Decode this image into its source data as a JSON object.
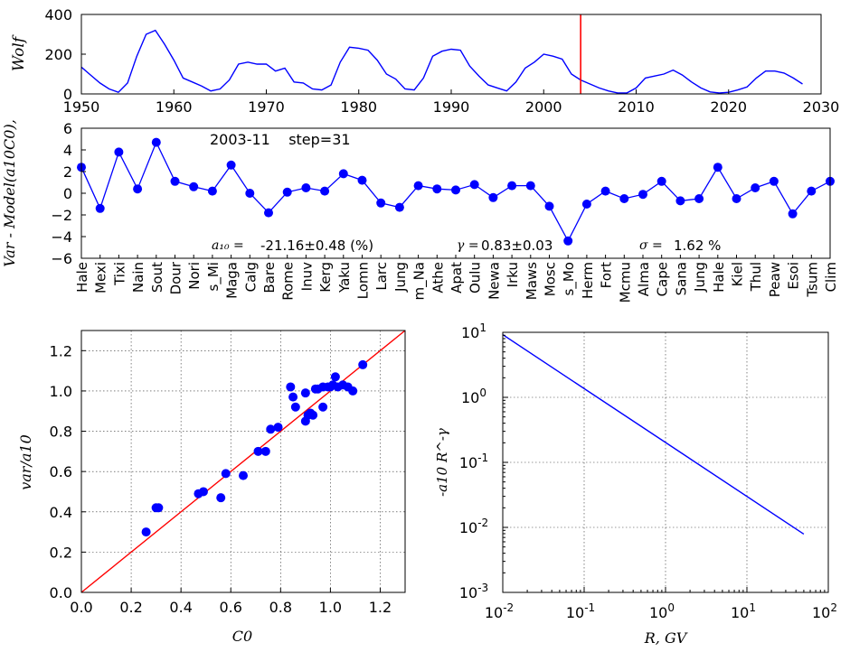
{
  "chart_data": [
    {
      "type": "line",
      "ylabel": "Wolf",
      "xlim": [
        1950,
        2030
      ],
      "ylim": [
        0,
        400
      ],
      "xticks": [
        "1950",
        "1960",
        "1970",
        "1980",
        "1990",
        "2000",
        "2010",
        "2020",
        "2030"
      ],
      "yticks": [
        "0",
        "200",
        "400"
      ],
      "marker_year": 2004,
      "colors": {
        "line": "#0000ff",
        "marker": "#ff0000"
      },
      "series": [
        {
          "x": [
            1950,
            1951,
            1952,
            1953,
            1954,
            1955,
            1956,
            1957,
            1958,
            1959,
            1960,
            1961,
            1962,
            1963,
            1964,
            1965,
            1966,
            1967,
            1968,
            1969,
            1970,
            1971,
            1972,
            1973,
            1974,
            1975,
            1976,
            1977,
            1978,
            1979,
            1980,
            1981,
            1982,
            1983,
            1984,
            1985,
            1986,
            1987,
            1988,
            1989,
            1990,
            1991,
            1992,
            1993,
            1994,
            1995,
            1996,
            1997,
            1998,
            1999,
            2000,
            2001,
            2002,
            2003,
            2004,
            2005,
            2006,
            2007,
            2008,
            2009,
            2010,
            2011,
            2012,
            2013,
            2014,
            2015,
            2016,
            2017,
            2018,
            2019,
            2020,
            2021,
            2022,
            2023,
            2024,
            2025,
            2026,
            2027,
            2028
          ],
          "y": [
            135,
            95,
            55,
            25,
            8,
            55,
            190,
            300,
            320,
            250,
            170,
            80,
            60,
            40,
            15,
            25,
            70,
            150,
            160,
            150,
            150,
            115,
            130,
            60,
            55,
            25,
            20,
            45,
            160,
            235,
            230,
            220,
            170,
            100,
            75,
            25,
            20,
            80,
            190,
            215,
            225,
            220,
            140,
            90,
            45,
            30,
            15,
            60,
            130,
            160,
            200,
            190,
            175,
            100,
            70,
            50,
            30,
            15,
            5,
            5,
            30,
            80,
            90,
            100,
            120,
            95,
            60,
            30,
            10,
            5,
            8,
            20,
            35,
            80,
            115,
            115,
            105,
            80,
            50
          ]
        }
      ]
    },
    {
      "type": "line",
      "ylabel": "Var - Model(a10C0),",
      "ylim": [
        -6,
        6
      ],
      "yticks": [
        "6",
        "4",
        "2",
        "0",
        "−2",
        "−4",
        "−6"
      ],
      "annotation_top": "2003-11    step=31",
      "stats": {
        "a10_label": "a₁₀ =",
        "a10_value": "-21.16±0.48 (%)",
        "gamma_label": "γ =",
        "gamma_value": "0.83±0.03",
        "sigma_label": "σ =",
        "sigma_value": "1.62 %"
      },
      "colors": {
        "line": "#0000ff",
        "marker": "#0000ff"
      },
      "categories": [
        "Hale",
        "Mexi",
        "Tixi",
        "Nain",
        "Sout",
        "Dour",
        "Nori",
        "s_Mi",
        "Maga",
        "Calg",
        "Bare",
        "Rome",
        "Inuv",
        "Kerg",
        "Yaku",
        "Lomn",
        "Larc",
        "Jung",
        "m_Na",
        "Athe",
        "Apat",
        "Oulu",
        "Newa",
        "Irku",
        "Maws",
        "Mosc",
        "s_Mo",
        "Herm",
        "Fort",
        "Mcmu",
        "Alma",
        "Cape",
        "Sana",
        "Jung",
        "Hale",
        "Kiel",
        "Thul",
        "Peaw",
        "Esoi",
        "Tsum",
        "Clim"
      ],
      "values": [
        2.4,
        -1.4,
        3.8,
        0.4,
        4.7,
        1.1,
        0.6,
        0.2,
        2.6,
        0.0,
        -1.8,
        0.1,
        0.5,
        0.2,
        1.8,
        1.2,
        -0.9,
        -1.3,
        0.7,
        0.4,
        0.3,
        0.8,
        -0.4,
        0.7,
        0.7,
        -1.2,
        -4.4,
        -1.0,
        0.2,
        -0.5,
        -0.1,
        1.1,
        -0.7,
        -0.5,
        2.4,
        -0.5,
        0.5,
        1.1,
        -1.9,
        0.2,
        1.1
      ]
    },
    {
      "type": "scatter",
      "xlabel": "C0",
      "ylabel": "var/a10",
      "xlim": [
        0.0,
        1.3
      ],
      "ylim": [
        0.0,
        1.3
      ],
      "xticks": [
        "0.0",
        "0.2",
        "0.4",
        "0.6",
        "0.8",
        "1.0",
        "1.2"
      ],
      "yticks": [
        "0.0",
        "0.2",
        "0.4",
        "0.6",
        "0.8",
        "1.0",
        "1.2"
      ],
      "grid": true,
      "colors": {
        "points": "#0000ff",
        "fit": "#ff0000"
      },
      "fit_line": {
        "x": [
          0,
          1.3
        ],
        "y": [
          0,
          1.3
        ]
      },
      "points": [
        [
          0.26,
          0.3
        ],
        [
          0.3,
          0.42
        ],
        [
          0.31,
          0.42
        ],
        [
          0.47,
          0.49
        ],
        [
          0.49,
          0.5
        ],
        [
          0.56,
          0.47
        ],
        [
          0.58,
          0.59
        ],
        [
          0.65,
          0.58
        ],
        [
          0.71,
          0.7
        ],
        [
          0.74,
          0.7
        ],
        [
          0.76,
          0.81
        ],
        [
          0.79,
          0.82
        ],
        [
          0.84,
          1.02
        ],
        [
          0.85,
          0.97
        ],
        [
          0.86,
          0.92
        ],
        [
          0.9,
          0.85
        ],
        [
          0.9,
          0.99
        ],
        [
          0.91,
          0.88
        ],
        [
          0.92,
          0.89
        ],
        [
          0.93,
          0.88
        ],
        [
          0.94,
          1.01
        ],
        [
          0.95,
          1.01
        ],
        [
          0.97,
          1.02
        ],
        [
          0.97,
          0.92
        ],
        [
          0.99,
          1.02
        ],
        [
          1.0,
          1.02
        ],
        [
          1.01,
          1.03
        ],
        [
          1.02,
          1.07
        ],
        [
          1.03,
          1.02
        ],
        [
          1.05,
          1.03
        ],
        [
          1.07,
          1.02
        ],
        [
          1.09,
          1.0
        ],
        [
          1.13,
          1.13
        ]
      ]
    },
    {
      "type": "line",
      "xlabel": "R, GV",
      "ylabel": "-a10 R^-γ",
      "xscale": "log",
      "yscale": "log",
      "xlim": [
        0.01,
        100
      ],
      "ylim": [
        0.001,
        10
      ],
      "grid": true,
      "colors": {
        "line": "#0000ff"
      },
      "xticks": [
        {
          "base": "10",
          "exp": "-2"
        },
        {
          "base": "10",
          "exp": "-1"
        },
        {
          "base": "10",
          "exp": "0"
        },
        {
          "base": "10",
          "exp": "1"
        },
        {
          "base": "10",
          "exp": "2"
        }
      ],
      "yticks": [
        {
          "base": "10",
          "exp": "1"
        },
        {
          "base": "10",
          "exp": "0"
        },
        {
          "base": "10",
          "exp": "-1"
        },
        {
          "base": "10",
          "exp": "-2"
        },
        {
          "base": "10",
          "exp": "-3"
        }
      ],
      "series": [
        {
          "x": [
            0.01,
            50
          ],
          "y": [
            9.2,
            0.0079
          ]
        }
      ]
    }
  ]
}
